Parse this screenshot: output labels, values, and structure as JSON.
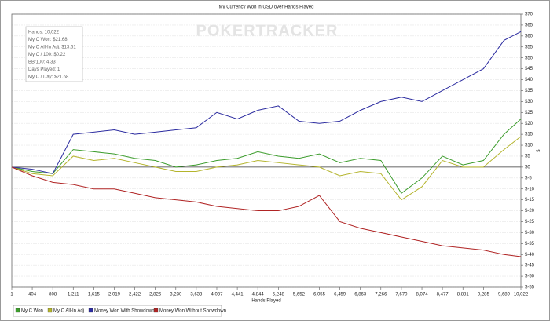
{
  "chart_data": {
    "type": "line",
    "title": "My Currency Won in USD over Hands Played",
    "watermark": "POKERTRACKER",
    "xlabel": "Hands Played",
    "ylabel": "$",
    "info_box": [
      "Hands: 10,022",
      "My C Won: $21.68",
      "My C All-In Adj: $13.61",
      "My C / 100: $0.22",
      "BB/100: 4.33",
      "Days Played: 1",
      "My C / Day: $21.68"
    ],
    "x": [
      1,
      404,
      808,
      1211,
      1615,
      2019,
      2422,
      2826,
      3230,
      3633,
      4037,
      4441,
      4844,
      5248,
      5652,
      6055,
      6459,
      6863,
      7266,
      7670,
      8074,
      8477,
      8881,
      9285,
      9689,
      10022
    ],
    "series": [
      {
        "name": "My C Won",
        "color": "#3c9c2c",
        "values": [
          0,
          -2,
          -3,
          8,
          7,
          6,
          4,
          3,
          0,
          1,
          3,
          4,
          7,
          5,
          4,
          6,
          2,
          4,
          3,
          -12,
          -5,
          5,
          1,
          3,
          15,
          22
        ]
      },
      {
        "name": "My C All-In Adj",
        "color": "#b4b42c",
        "values": [
          0,
          -3,
          -4,
          5,
          3,
          4,
          2,
          0,
          -2,
          -2,
          0,
          1,
          3,
          2,
          1,
          0,
          -4,
          -2,
          -3,
          -15,
          -9,
          3,
          0,
          0,
          8,
          14
        ]
      },
      {
        "name": "Money Won With Showdown",
        "color": "#2c2ca0",
        "values": [
          0,
          -1,
          -3,
          15,
          16,
          17,
          15,
          16,
          17,
          18,
          25,
          22,
          26,
          28,
          21,
          20,
          21,
          26,
          30,
          32,
          30,
          35,
          40,
          45,
          58,
          62
        ]
      },
      {
        "name": "Money Won Without Showdown",
        "color": "#b02424",
        "values": [
          0,
          -4,
          -7,
          -8,
          -10,
          -10,
          -12,
          -14,
          -15,
          -16,
          -18,
          -19,
          -20,
          -20,
          -18,
          -13,
          -25,
          -28,
          -30,
          -32,
          -34,
          -36,
          -37,
          -38,
          -40,
          -41
        ]
      }
    ],
    "xlim": [
      1,
      10022
    ],
    "xticks": [
      1,
      404,
      808,
      {
        "value": 1211,
        "label": "1,211"
      },
      {
        "value": 1615,
        "label": "1,615"
      },
      {
        "value": 2019,
        "label": "2,019"
      },
      {
        "value": 2422,
        "label": "2,422"
      },
      {
        "value": 2826,
        "label": "2,826"
      },
      {
        "value": 3230,
        "label": "3,230"
      },
      {
        "value": 3633,
        "label": "3,633"
      },
      {
        "value": 4037,
        "label": "4,037"
      },
      {
        "value": 4441,
        "label": "4,441"
      },
      {
        "value": 4844,
        "label": "4,844"
      },
      {
        "value": 5248,
        "label": "5,248"
      },
      {
        "value": 5652,
        "label": "5,652"
      },
      {
        "value": 6055,
        "label": "6,055"
      },
      {
        "value": 6459,
        "label": "6,459"
      },
      {
        "value": 6863,
        "label": "6,863"
      },
      {
        "value": 7266,
        "label": "7,266"
      },
      {
        "value": 7670,
        "label": "7,670"
      },
      {
        "value": 8074,
        "label": "8,074"
      },
      {
        "value": 8477,
        "label": "8,477"
      },
      {
        "value": 8881,
        "label": "8,881"
      },
      {
        "value": 9285,
        "label": "9,285"
      },
      {
        "value": 9689,
        "label": "9,689"
      },
      {
        "value": 10022,
        "label": "10,022"
      }
    ],
    "ylim": [
      -55,
      70
    ],
    "yticks": [
      {
        "value": 70,
        "label": "$70"
      },
      {
        "value": 65,
        "label": "$65"
      },
      {
        "value": 60,
        "label": "$60"
      },
      {
        "value": 55,
        "label": "$55"
      },
      {
        "value": 50,
        "label": "$50"
      },
      {
        "value": 45,
        "label": "$45"
      },
      {
        "value": 40,
        "label": "$40"
      },
      {
        "value": 35,
        "label": "$35"
      },
      {
        "value": 30,
        "label": "$30"
      },
      {
        "value": 25,
        "label": "$25"
      },
      {
        "value": 20,
        "label": "$20"
      },
      {
        "value": 15,
        "label": "$15"
      },
      {
        "value": 10,
        "label": "$10"
      },
      {
        "value": 5,
        "label": "$5"
      },
      {
        "value": 0,
        "label": "$0"
      },
      {
        "value": -5,
        "label": "$-5"
      },
      {
        "value": -10,
        "label": "$-10"
      },
      {
        "value": -15,
        "label": "$-15"
      },
      {
        "value": -20,
        "label": "$-20"
      },
      {
        "value": -25,
        "label": "$-25"
      },
      {
        "value": -30,
        "label": "$-30"
      },
      {
        "value": -35,
        "label": "$-35"
      },
      {
        "value": -40,
        "label": "$-40"
      },
      {
        "value": -45,
        "label": "$-45"
      },
      {
        "value": -50,
        "label": "$-50"
      },
      {
        "value": -55,
        "label": "$-55"
      }
    ],
    "grid": true
  }
}
